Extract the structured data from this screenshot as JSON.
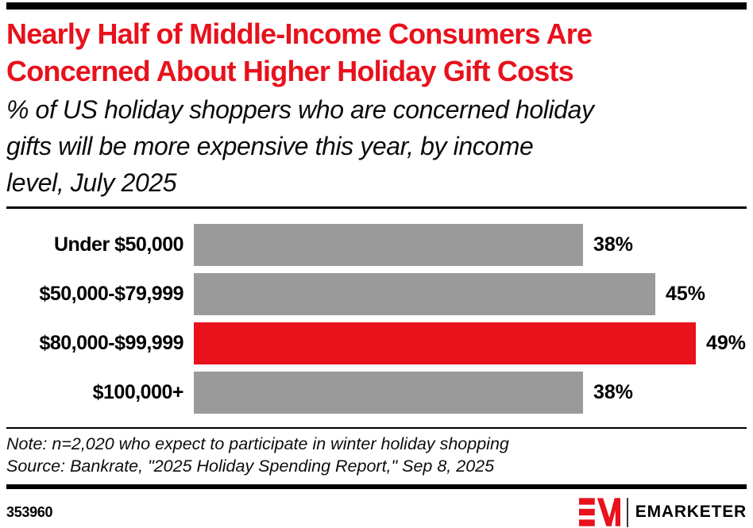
{
  "page": {
    "accent_red": "#e8111c",
    "bar_gray": "#9a9a9a",
    "rule_black": "#000000"
  },
  "header": {
    "title_lines": [
      "Nearly Half of Middle-Income Consumers Are",
      "Concerned About Higher Holiday Gift Costs"
    ],
    "subtitle_lines": [
      "% of US holiday shoppers who are concerned holiday",
      "gifts will be more expensive this year, by income",
      "level, July 2025"
    ]
  },
  "chart_data": {
    "type": "bar",
    "orientation": "horizontal",
    "title": "Nearly Half of Middle-Income Consumers Are Concerned About Higher Holiday Gift Costs",
    "subtitle": "% of US holiday shoppers who are concerned holiday gifts will be more expensive this year, by income level, July 2025",
    "categories": [
      "Under $50,000",
      "$50,000-$79,999",
      "$80,000-$99,999",
      "$100,000+"
    ],
    "values": [
      38,
      45,
      49,
      38
    ],
    "value_labels": [
      "38%",
      "45%",
      "49%",
      "38%"
    ],
    "highlight_index": 2,
    "bar_color": "#9a9a9a",
    "highlight_color": "#e8111c",
    "xlim": [
      0,
      49
    ],
    "grid": false,
    "legend": "none",
    "value_label_position": "outside-end"
  },
  "notes": {
    "note_line": "Note: n=2,020 who expect to participate in winter holiday shopping",
    "source_line": "Source: Bankrate, \"2025 Holiday Spending Report,\" Sep 8, 2025"
  },
  "footer": {
    "chart_id": "353960",
    "logo_text": "EMARKETER",
    "logo_mark": "emarketer-em-monogram-icon"
  }
}
